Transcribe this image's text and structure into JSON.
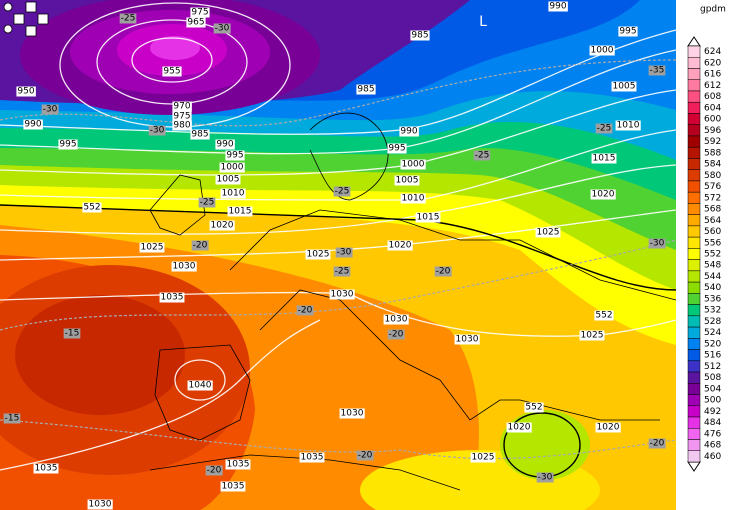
{
  "legend": {
    "unit": "gpdm",
    "items": [
      {
        "label": "624",
        "color": "#ffd2e6"
      },
      {
        "label": "620",
        "color": "#ffbcd2"
      },
      {
        "label": "616",
        "color": "#ffa0bc"
      },
      {
        "label": "612",
        "color": "#ff7aa0"
      },
      {
        "label": "608",
        "color": "#ff5082"
      },
      {
        "label": "604",
        "color": "#f01e5a"
      },
      {
        "label": "600",
        "color": "#d20032"
      },
      {
        "label": "596",
        "color": "#b4001e"
      },
      {
        "label": "592",
        "color": "#a00000"
      },
      {
        "label": "588",
        "color": "#b41400"
      },
      {
        "label": "584",
        "color": "#c82800"
      },
      {
        "label": "580",
        "color": "#dc3c00"
      },
      {
        "label": "576",
        "color": "#f05000"
      },
      {
        "label": "572",
        "color": "#ff6e00"
      },
      {
        "label": "568",
        "color": "#ff8c00"
      },
      {
        "label": "564",
        "color": "#ffaa00"
      },
      {
        "label": "560",
        "color": "#ffc800"
      },
      {
        "label": "556",
        "color": "#ffe600"
      },
      {
        "label": "552",
        "color": "#ffff00"
      },
      {
        "label": "548",
        "color": "#dcf000"
      },
      {
        "label": "544",
        "color": "#b4e600"
      },
      {
        "label": "540",
        "color": "#8cdc00"
      },
      {
        "label": "536",
        "color": "#50d232"
      },
      {
        "label": "532",
        "color": "#00c878"
      },
      {
        "label": "528",
        "color": "#00beb4"
      },
      {
        "label": "524",
        "color": "#00aadc"
      },
      {
        "label": "520",
        "color": "#0082f0"
      },
      {
        "label": "516",
        "color": "#005ae6"
      },
      {
        "label": "512",
        "color": "#3c32c8"
      },
      {
        "label": "508",
        "color": "#5a14a0"
      },
      {
        "label": "504",
        "color": "#780096"
      },
      {
        "label": "500",
        "color": "#a000b4"
      },
      {
        "label": "492",
        "color": "#c800c8"
      },
      {
        "label": "484",
        "color": "#e632e6"
      },
      {
        "label": "476",
        "color": "#f064f0"
      },
      {
        "label": "468",
        "color": "#f096f0"
      },
      {
        "label": "460",
        "color": "#f0c8f0"
      }
    ]
  },
  "map": {
    "isobar_labels": [
      "975",
      "965",
      "955",
      "950",
      "970",
      "975",
      "980",
      "985",
      "990",
      "995",
      "990",
      "995",
      "1000",
      "1005",
      "1010",
      "1015",
      "1020",
      "1025",
      "1030",
      "1035",
      "1040",
      "1035",
      "1030",
      "1035",
      "1035",
      "1035",
      "1030",
      "1025",
      "1030",
      "1030",
      "1030",
      "1020",
      "1015",
      "1010",
      "1005",
      "1000",
      "995",
      "990",
      "985",
      "985",
      "990",
      "995",
      "1000",
      "1005",
      "1010",
      "1015",
      "1020",
      "1025",
      "552",
      "552",
      "1025",
      "552",
      "1020",
      "1020",
      "1025"
    ],
    "low_marker": "L",
    "temperature_labels": [
      "-25",
      "-30",
      "-30",
      "-30",
      "-35",
      "-25",
      "-25",
      "-25",
      "-25",
      "-20",
      "-30",
      "-25",
      "-20",
      "-30",
      "-15",
      "-20",
      "-20",
      "-15",
      "-20",
      "-20",
      "-30",
      "-20"
    ]
  }
}
